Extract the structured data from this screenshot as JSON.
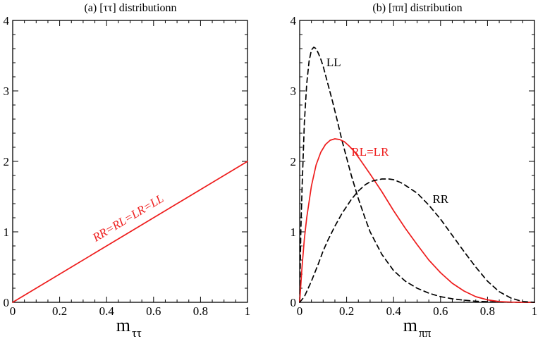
{
  "chart_data": [
    {
      "type": "line",
      "title": "(a)  [ττ] distributionn",
      "xlabel_main": "m",
      "xlabel_sub": "ττ",
      "ylabel": "",
      "xlim": [
        0,
        1
      ],
      "ylim": [
        0,
        4
      ],
      "xticks": [
        "0",
        "0.2",
        "0.4",
        "0.6",
        "0.8",
        "1"
      ],
      "yticks": [
        "0",
        "1",
        "2",
        "3",
        "4"
      ],
      "series": [
        {
          "name": "RR=RL=LR=LL",
          "color": "#ee1c1c",
          "dashed": false,
          "x": [
            0,
            0.25,
            0.5,
            0.75,
            1
          ],
          "y": [
            0,
            0.5,
            1.0,
            1.5,
            2.0
          ]
        }
      ],
      "annotations": [
        {
          "text": "RR=RL=LR=LL",
          "x": 0.5,
          "y": 1.15,
          "color": "#ee1c1c",
          "italic": true,
          "rotate": "along-line"
        }
      ]
    },
    {
      "type": "line",
      "title": "(b)  [ππ] distribution",
      "xlabel_main": "m",
      "xlabel_sub": "ππ",
      "ylabel": "",
      "xlim": [
        0,
        1
      ],
      "ylim": [
        0,
        4
      ],
      "xticks": [
        "0",
        "0.2",
        "0.4",
        "0.6",
        "0.8",
        "1"
      ],
      "yticks": [
        "0",
        "1",
        "2",
        "3",
        "4"
      ],
      "series": [
        {
          "name": "LL",
          "color": "#000000",
          "dashed": true,
          "x": [
            0,
            0.005,
            0.01,
            0.02,
            0.03,
            0.04,
            0.05,
            0.06,
            0.07,
            0.08,
            0.09,
            0.1,
            0.12,
            0.14,
            0.16,
            0.18,
            0.2,
            0.22,
            0.25,
            0.28,
            0.3,
            0.35,
            0.4,
            0.45,
            0.5,
            0.55,
            0.6,
            0.65,
            0.7,
            0.75,
            0.8,
            0.85,
            0.9,
            0.95,
            1.0
          ],
          "y": [
            0,
            1.02,
            1.6,
            2.55,
            3.1,
            3.42,
            3.58,
            3.62,
            3.6,
            3.53,
            3.45,
            3.35,
            3.1,
            2.85,
            2.58,
            2.3,
            2.05,
            1.8,
            1.47,
            1.18,
            1.0,
            0.68,
            0.45,
            0.3,
            0.2,
            0.13,
            0.08,
            0.05,
            0.03,
            0.015,
            0.008,
            0.003,
            0.001,
            0.0,
            0.0
          ]
        },
        {
          "name": "RL=LR",
          "color": "#ee1c1c",
          "dashed": false,
          "x": [
            0,
            0.01,
            0.02,
            0.03,
            0.05,
            0.07,
            0.09,
            0.11,
            0.13,
            0.15,
            0.17,
            0.19,
            0.21,
            0.23,
            0.25,
            0.3,
            0.35,
            0.4,
            0.45,
            0.5,
            0.55,
            0.6,
            0.65,
            0.7,
            0.75,
            0.8,
            0.85,
            0.9,
            0.95,
            1.0
          ],
          "y": [
            0,
            0.5,
            0.9,
            1.2,
            1.65,
            1.95,
            2.13,
            2.24,
            2.3,
            2.32,
            2.31,
            2.28,
            2.22,
            2.15,
            2.06,
            1.82,
            1.57,
            1.3,
            1.05,
            0.82,
            0.6,
            0.42,
            0.27,
            0.16,
            0.08,
            0.035,
            0.01,
            0.003,
            0.0,
            0.0
          ]
        },
        {
          "name": "RR",
          "color": "#000000",
          "dashed": true,
          "x": [
            0,
            0.02,
            0.05,
            0.08,
            0.1,
            0.12,
            0.15,
            0.18,
            0.2,
            0.22,
            0.25,
            0.28,
            0.3,
            0.32,
            0.35,
            0.38,
            0.4,
            0.43,
            0.45,
            0.5,
            0.55,
            0.6,
            0.65,
            0.7,
            0.75,
            0.8,
            0.85,
            0.9,
            0.95,
            1.0
          ],
          "y": [
            0,
            0.08,
            0.3,
            0.55,
            0.73,
            0.88,
            1.08,
            1.26,
            1.36,
            1.46,
            1.58,
            1.67,
            1.71,
            1.73,
            1.75,
            1.75,
            1.74,
            1.7,
            1.66,
            1.55,
            1.38,
            1.18,
            0.95,
            0.72,
            0.5,
            0.3,
            0.15,
            0.06,
            0.01,
            0.0
          ]
        }
      ],
      "annotations": [
        {
          "text": "LL",
          "x": 0.145,
          "y": 3.35,
          "color": "#000000",
          "italic": false
        },
        {
          "text": "RL=LR",
          "x": 0.3,
          "y": 2.08,
          "color": "#ee1c1c",
          "italic": false
        },
        {
          "text": "RR",
          "x": 0.6,
          "y": 1.41,
          "color": "#000000",
          "italic": false
        }
      ]
    }
  ]
}
